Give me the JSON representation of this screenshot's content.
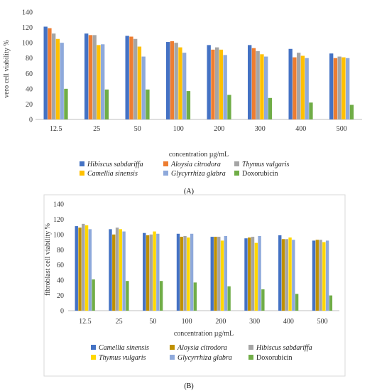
{
  "chart_data": [
    {
      "type": "bar",
      "panel": "(A)",
      "title": "",
      "xlabel": "concentration µg/mL",
      "ylabel": "vero cell viability %",
      "ylim": [
        0,
        140
      ],
      "yticks": [
        0,
        20,
        40,
        60,
        80,
        100,
        120,
        140
      ],
      "grid": false,
      "legend_position": "bottom",
      "categories": [
        "12.5",
        "25",
        "50",
        "100",
        "200",
        "300",
        "400",
        "500"
      ],
      "series": [
        {
          "name": "Hibiscus sabdariffa",
          "color": "#4472C4",
          "values": [
            121,
            112,
            109,
            101,
            97,
            97,
            92,
            86
          ]
        },
        {
          "name": "Aloysia citrodora",
          "color": "#ED7D31",
          "values": [
            119,
            110,
            108,
            102,
            91,
            93,
            81,
            80
          ]
        },
        {
          "name": "Thymus vulgaris",
          "color": "#A5A5A5",
          "values": [
            112,
            110,
            105,
            100,
            94,
            89,
            87,
            82
          ]
        },
        {
          "name": "Camellia sinensis",
          "color": "#FFC000",
          "values": [
            105,
            97,
            95,
            94,
            91,
            85,
            83,
            81
          ]
        },
        {
          "name": "Glycyrrhiza glabra",
          "color": "#8EA9DB",
          "values": [
            100,
            98,
            82,
            87,
            84,
            82,
            80,
            80
          ]
        },
        {
          "name": "Doxorubicin",
          "color": "#70AD47",
          "values": [
            40,
            39,
            39,
            37,
            32,
            28,
            22,
            19
          ]
        }
      ]
    },
    {
      "type": "bar",
      "panel": "(B)",
      "title": "",
      "xlabel": "concentration µg/mL",
      "ylabel": "fibroblast cell viability %",
      "ylim": [
        0,
        140
      ],
      "yticks": [
        0,
        20,
        40,
        60,
        80,
        100,
        120,
        140
      ],
      "grid": false,
      "legend_position": "bottom",
      "categories": [
        "12.5",
        "25",
        "50",
        "100",
        "200",
        "300",
        "400",
        "500"
      ],
      "series": [
        {
          "name": "Camellia sinensis",
          "color": "#4472C4",
          "values": [
            111,
            107,
            102,
            101,
            97,
            95,
            99,
            92
          ]
        },
        {
          "name": "Aloysia citrodora",
          "color": "#BF9000",
          "values": [
            109,
            100,
            99,
            97,
            97,
            96,
            94,
            93
          ]
        },
        {
          "name": "Hibiscus sabdariffa",
          "color": "#A5A5A5",
          "values": [
            114,
            109,
            100,
            98,
            97,
            97,
            94,
            93
          ]
        },
        {
          "name": "Thymus vulgaris",
          "color": "#FFD700",
          "values": [
            112,
            107,
            104,
            96,
            92,
            89,
            96,
            90
          ]
        },
        {
          "name": "Glycyrrhiza glabra",
          "color": "#8EA9DB",
          "values": [
            107,
            104,
            101,
            101,
            98,
            98,
            93,
            92
          ]
        },
        {
          "name": "Doxorubicin",
          "color": "#70AD47",
          "values": [
            41,
            39,
            39,
            37,
            32,
            28,
            22,
            20
          ]
        }
      ]
    }
  ]
}
